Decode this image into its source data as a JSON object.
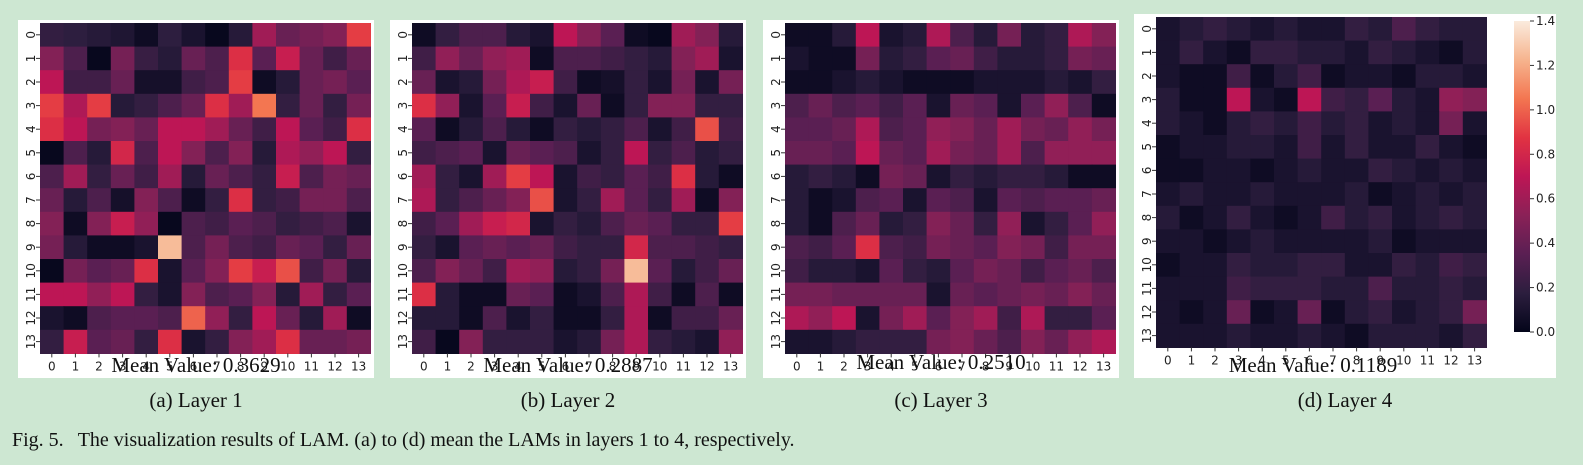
{
  "figure": {
    "label": "Fig. 5.",
    "caption": "The visualization results of LAM. (a) to (d) mean the LAMs in layers 1 to 4, respectively."
  },
  "colorbar": {
    "vmin": 0.0,
    "vmax": 1.4,
    "ticks": [
      "0.0",
      "0.2",
      "0.4",
      "0.6",
      "0.8",
      "1.0",
      "1.2",
      "1.4"
    ],
    "colormap": "rocket",
    "colors": [
      "#03051a",
      "#2c1e3e",
      "#5a1f53",
      "#8a2157",
      "#bd1655",
      "#e13342",
      "#f37651",
      "#f6b48e",
      "#faebdd"
    ]
  },
  "chart_data": [
    {
      "type": "heatmap",
      "subtitle": "(a) Layer 1",
      "mean_label": "Mean Value: 0.3629",
      "x_ticks": [
        "0",
        "1",
        "2",
        "3",
        "4",
        "5",
        "6",
        "7",
        "8",
        "9",
        "10",
        "11",
        "12",
        "13"
      ],
      "y_ticks": [
        "0",
        "1",
        "2",
        "3",
        "4",
        "5",
        "6",
        "7",
        "8",
        "9",
        "10",
        "11",
        "12",
        "13"
      ],
      "values": [
        [
          0.2,
          0.18,
          0.15,
          0.12,
          0.05,
          0.18,
          0.1,
          0.02,
          0.15,
          0.6,
          0.4,
          0.45,
          0.5,
          0.9
        ],
        [
          0.5,
          0.3,
          0.02,
          0.45,
          0.22,
          0.15,
          0.4,
          0.3,
          0.85,
          0.35,
          0.75,
          0.4,
          0.25,
          0.4
        ],
        [
          0.7,
          0.25,
          0.25,
          0.4,
          0.08,
          0.08,
          0.25,
          0.3,
          0.9,
          0.05,
          0.15,
          0.4,
          0.45,
          0.35
        ],
        [
          0.9,
          0.65,
          0.9,
          0.15,
          0.2,
          0.3,
          0.4,
          0.85,
          0.6,
          1.05,
          0.2,
          0.4,
          0.2,
          0.45
        ],
        [
          0.85,
          0.7,
          0.45,
          0.5,
          0.4,
          0.7,
          0.7,
          0.6,
          0.4,
          0.25,
          0.7,
          0.35,
          0.25,
          0.85
        ],
        [
          0.02,
          0.3,
          0.15,
          0.8,
          0.3,
          0.7,
          0.5,
          0.3,
          0.5,
          0.15,
          0.65,
          0.55,
          0.7,
          0.2
        ],
        [
          0.3,
          0.6,
          0.2,
          0.4,
          0.25,
          0.6,
          0.15,
          0.4,
          0.3,
          0.2,
          0.75,
          0.3,
          0.45,
          0.4
        ],
        [
          0.4,
          0.15,
          0.3,
          0.08,
          0.5,
          0.3,
          0.05,
          0.2,
          0.85,
          0.2,
          0.25,
          0.45,
          0.45,
          0.3
        ],
        [
          0.5,
          0.05,
          0.5,
          0.75,
          0.55,
          0.02,
          0.3,
          0.25,
          0.35,
          0.3,
          0.2,
          0.25,
          0.3,
          0.1
        ],
        [
          0.45,
          0.15,
          0.05,
          0.05,
          0.1,
          1.25,
          0.3,
          0.45,
          0.3,
          0.25,
          0.4,
          0.35,
          0.2,
          0.4
        ],
        [
          0.02,
          0.45,
          0.35,
          0.4,
          0.85,
          0.1,
          0.35,
          0.5,
          0.9,
          0.75,
          0.95,
          0.25,
          0.45,
          0.15
        ],
        [
          0.7,
          0.7,
          0.55,
          0.7,
          0.2,
          0.1,
          0.5,
          0.3,
          0.35,
          0.5,
          0.15,
          0.6,
          0.2,
          0.35
        ],
        [
          0.1,
          0.05,
          0.3,
          0.35,
          0.35,
          0.3,
          1.0,
          0.55,
          0.2,
          0.7,
          0.4,
          0.15,
          0.6,
          0.05
        ],
        [
          0.2,
          0.75,
          0.35,
          0.4,
          0.2,
          0.85,
          0.1,
          0.2,
          0.5,
          0.6,
          0.85,
          0.4,
          0.4,
          0.45
        ]
      ]
    },
    {
      "type": "heatmap",
      "subtitle": "(b) Layer 2",
      "mean_label": "Mean Value: 0.2887",
      "x_ticks": [
        "0",
        "1",
        "2",
        "3",
        "4",
        "5",
        "6",
        "7",
        "8",
        "9",
        "10",
        "11",
        "12",
        "13"
      ],
      "y_ticks": [
        "0",
        "1",
        "2",
        "3",
        "4",
        "5",
        "6",
        "7",
        "8",
        "9",
        "10",
        "11",
        "12",
        "13"
      ],
      "values": [
        [
          0.05,
          0.2,
          0.3,
          0.3,
          0.15,
          0.1,
          0.7,
          0.5,
          0.35,
          0.05,
          0.02,
          0.6,
          0.5,
          0.15
        ],
        [
          0.25,
          0.55,
          0.4,
          0.55,
          0.6,
          0.05,
          0.3,
          0.3,
          0.25,
          0.2,
          0.15,
          0.5,
          0.6,
          0.1
        ],
        [
          0.4,
          0.1,
          0.15,
          0.45,
          0.65,
          0.75,
          0.25,
          0.05,
          0.08,
          0.2,
          0.1,
          0.45,
          0.1,
          0.45
        ],
        [
          0.85,
          0.55,
          0.1,
          0.35,
          0.75,
          0.25,
          0.1,
          0.4,
          0.05,
          0.2,
          0.5,
          0.5,
          0.2,
          0.2
        ],
        [
          0.35,
          0.05,
          0.15,
          0.3,
          0.15,
          0.05,
          0.2,
          0.15,
          0.2,
          0.3,
          0.1,
          0.25,
          0.95,
          0.25
        ],
        [
          0.25,
          0.3,
          0.35,
          0.1,
          0.4,
          0.35,
          0.3,
          0.1,
          0.2,
          0.7,
          0.2,
          0.3,
          0.15,
          0.2
        ],
        [
          0.6,
          0.2,
          0.1,
          0.6,
          0.9,
          0.7,
          0.1,
          0.25,
          0.2,
          0.35,
          0.25,
          0.85,
          0.15,
          0.05
        ],
        [
          0.65,
          0.2,
          0.3,
          0.4,
          0.5,
          0.95,
          0.1,
          0.2,
          0.6,
          0.35,
          0.2,
          0.6,
          0.05,
          0.5
        ],
        [
          0.25,
          0.35,
          0.6,
          0.75,
          0.8,
          0.1,
          0.2,
          0.15,
          0.3,
          0.4,
          0.35,
          0.2,
          0.2,
          0.9
        ],
        [
          0.2,
          0.1,
          0.35,
          0.4,
          0.35,
          0.4,
          0.25,
          0.2,
          0.2,
          0.8,
          0.3,
          0.3,
          0.25,
          0.2
        ],
        [
          0.3,
          0.5,
          0.4,
          0.25,
          0.6,
          0.55,
          0.15,
          0.2,
          0.45,
          1.25,
          0.35,
          0.15,
          0.25,
          0.4
        ],
        [
          0.85,
          0.15,
          0.05,
          0.05,
          0.4,
          0.35,
          0.05,
          0.1,
          0.3,
          0.65,
          0.25,
          0.05,
          0.3,
          0.05
        ],
        [
          0.15,
          0.15,
          0.05,
          0.3,
          0.1,
          0.2,
          0.05,
          0.05,
          0.2,
          0.65,
          0.05,
          0.25,
          0.25,
          0.4
        ],
        [
          0.25,
          0.02,
          0.5,
          0.2,
          0.2,
          0.2,
          0.1,
          0.15,
          0.45,
          0.65,
          0.2,
          0.15,
          0.1,
          0.55
        ]
      ]
    },
    {
      "type": "heatmap",
      "subtitle": "(c) Layer 3",
      "mean_label": "Mean Value: 0.2510",
      "x_ticks": [
        "0",
        "1",
        "2",
        "3",
        "4",
        "5",
        "6",
        "7",
        "8",
        "9",
        "10",
        "11",
        "12",
        "13"
      ],
      "y_ticks": [
        "0",
        "1",
        "2",
        "3",
        "4",
        "5",
        "6",
        "7",
        "8",
        "9",
        "10",
        "11",
        "12",
        "13"
      ],
      "values": [
        [
          0.05,
          0.05,
          0.15,
          0.7,
          0.1,
          0.15,
          0.65,
          0.3,
          0.15,
          0.45,
          0.15,
          0.2,
          0.65,
          0.5
        ],
        [
          0.1,
          0.05,
          0.05,
          0.45,
          0.15,
          0.2,
          0.35,
          0.4,
          0.25,
          0.15,
          0.15,
          0.2,
          0.45,
          0.4
        ],
        [
          0.05,
          0.05,
          0.1,
          0.15,
          0.1,
          0.05,
          0.05,
          0.05,
          0.1,
          0.1,
          0.1,
          0.15,
          0.1,
          0.2
        ],
        [
          0.3,
          0.4,
          0.3,
          0.35,
          0.25,
          0.35,
          0.1,
          0.4,
          0.35,
          0.1,
          0.35,
          0.55,
          0.3,
          0.05
        ],
        [
          0.35,
          0.35,
          0.4,
          0.65,
          0.3,
          0.35,
          0.55,
          0.5,
          0.4,
          0.6,
          0.45,
          0.4,
          0.55,
          0.45
        ],
        [
          0.4,
          0.4,
          0.35,
          0.7,
          0.4,
          0.35,
          0.6,
          0.45,
          0.4,
          0.6,
          0.3,
          0.55,
          0.55,
          0.55
        ],
        [
          0.15,
          0.2,
          0.15,
          0.05,
          0.45,
          0.4,
          0.1,
          0.2,
          0.15,
          0.2,
          0.2,
          0.15,
          0.05,
          0.05
        ],
        [
          0.15,
          0.05,
          0.1,
          0.3,
          0.35,
          0.1,
          0.35,
          0.3,
          0.1,
          0.35,
          0.3,
          0.35,
          0.35,
          0.4
        ],
        [
          0.15,
          0.05,
          0.3,
          0.4,
          0.15,
          0.2,
          0.5,
          0.4,
          0.2,
          0.55,
          0.1,
          0.2,
          0.35,
          0.55
        ],
        [
          0.3,
          0.25,
          0.35,
          0.85,
          0.3,
          0.25,
          0.45,
          0.4,
          0.35,
          0.5,
          0.45,
          0.25,
          0.45,
          0.45
        ],
        [
          0.25,
          0.15,
          0.15,
          0.1,
          0.35,
          0.2,
          0.15,
          0.35,
          0.45,
          0.4,
          0.25,
          0.35,
          0.4,
          0.3
        ],
        [
          0.45,
          0.45,
          0.4,
          0.4,
          0.4,
          0.4,
          0.1,
          0.4,
          0.35,
          0.4,
          0.45,
          0.4,
          0.5,
          0.4
        ],
        [
          0.65,
          0.55,
          0.7,
          0.1,
          0.45,
          0.6,
          0.35,
          0.5,
          0.6,
          0.25,
          0.65,
          0.2,
          0.2,
          0.35
        ],
        [
          0.1,
          0.1,
          0.15,
          0.2,
          0.2,
          0.2,
          0.45,
          0.5,
          0.4,
          0.3,
          0.5,
          0.4,
          0.55,
          0.65
        ]
      ]
    },
    {
      "type": "heatmap",
      "subtitle": "(d) Layer 4",
      "mean_label": "Mean Value: 0.1189",
      "x_ticks": [
        "0",
        "1",
        "2",
        "3",
        "4",
        "5",
        "6",
        "7",
        "8",
        "9",
        "10",
        "11",
        "12",
        "13"
      ],
      "y_ticks": [
        "0",
        "1",
        "2",
        "3",
        "4",
        "5",
        "6",
        "7",
        "8",
        "9",
        "10",
        "11",
        "12",
        "13"
      ],
      "values": [
        [
          0.1,
          0.15,
          0.2,
          0.15,
          0.1,
          0.15,
          0.1,
          0.1,
          0.2,
          0.15,
          0.3,
          0.2,
          0.15,
          0.15
        ],
        [
          0.1,
          0.2,
          0.1,
          0.05,
          0.2,
          0.2,
          0.15,
          0.15,
          0.1,
          0.2,
          0.15,
          0.1,
          0.05,
          0.15
        ],
        [
          0.1,
          0.05,
          0.05,
          0.25,
          0.05,
          0.15,
          0.25,
          0.05,
          0.1,
          0.1,
          0.05,
          0.15,
          0.15,
          0.1
        ],
        [
          0.15,
          0.05,
          0.05,
          0.7,
          0.1,
          0.05,
          0.7,
          0.25,
          0.2,
          0.35,
          0.15,
          0.1,
          0.55,
          0.5
        ],
        [
          0.15,
          0.1,
          0.05,
          0.15,
          0.2,
          0.15,
          0.25,
          0.15,
          0.2,
          0.1,
          0.15,
          0.1,
          0.45,
          0.1
        ],
        [
          0.05,
          0.1,
          0.1,
          0.15,
          0.15,
          0.1,
          0.25,
          0.1,
          0.2,
          0.1,
          0.1,
          0.2,
          0.1,
          0.05
        ],
        [
          0.05,
          0.05,
          0.1,
          0.1,
          0.05,
          0.1,
          0.15,
          0.1,
          0.1,
          0.2,
          0.15,
          0.1,
          0.15,
          0.1
        ],
        [
          0.1,
          0.15,
          0.1,
          0.1,
          0.15,
          0.1,
          0.1,
          0.1,
          0.15,
          0.05,
          0.1,
          0.15,
          0.1,
          0.15
        ],
        [
          0.15,
          0.05,
          0.1,
          0.2,
          0.1,
          0.05,
          0.1,
          0.25,
          0.15,
          0.2,
          0.1,
          0.15,
          0.2,
          0.15
        ],
        [
          0.1,
          0.1,
          0.05,
          0.1,
          0.15,
          0.1,
          0.1,
          0.1,
          0.1,
          0.15,
          0.05,
          0.1,
          0.1,
          0.1
        ],
        [
          0.05,
          0.1,
          0.1,
          0.2,
          0.15,
          0.15,
          0.2,
          0.2,
          0.1,
          0.1,
          0.2,
          0.15,
          0.25,
          0.2
        ],
        [
          0.1,
          0.1,
          0.1,
          0.25,
          0.2,
          0.2,
          0.2,
          0.15,
          0.15,
          0.3,
          0.15,
          0.15,
          0.2,
          0.15
        ],
        [
          0.1,
          0.05,
          0.1,
          0.4,
          0.05,
          0.1,
          0.4,
          0.05,
          0.15,
          0.2,
          0.1,
          0.15,
          0.2,
          0.45
        ],
        [
          0.1,
          0.1,
          0.1,
          0.15,
          0.1,
          0.1,
          0.15,
          0.1,
          0.05,
          0.15,
          0.15,
          0.15,
          0.1,
          0.2
        ]
      ]
    }
  ]
}
